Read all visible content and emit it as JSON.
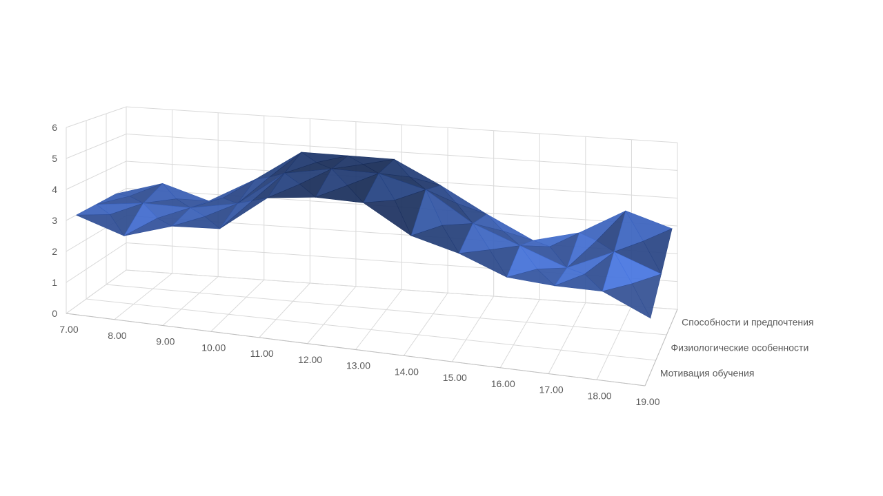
{
  "chart_data": {
    "type": "surface",
    "title": "",
    "x_categories": [
      "7.00",
      "8.00",
      "9.00",
      "10.00",
      "11.00",
      "12.00",
      "13.00",
      "14.00",
      "15.00",
      "16.00",
      "17.00",
      "18.00",
      "19.00"
    ],
    "z_ticks": [
      "0",
      "1",
      "2",
      "3",
      "4",
      "5",
      "6"
    ],
    "zlim": [
      0,
      6
    ],
    "series": [
      {
        "name": "Мотивация обучения",
        "values": [
          3,
          2.5,
          3,
          3.1,
          4.3,
          4.5,
          4.5,
          3.6,
          3.2,
          2.6,
          2.5,
          2.5,
          1.8
        ]
      },
      {
        "name": "Физиологические особенности",
        "values": [
          3,
          3.2,
          3.2,
          3.5,
          4.7,
          5,
          5,
          4.6,
          3.6,
          3,
          2.4,
          3.1,
          2.5
        ]
      },
      {
        "name": "Способности и предпочтения",
        "values": [
          3,
          3.5,
          3,
          3.9,
          5,
          5,
          5,
          4.2,
          3.3,
          2.5,
          2.9,
          3.8,
          3.3
        ]
      }
    ],
    "grid": true,
    "colors": {
      "surface_light": "#a4bdf8",
      "surface_mid": "#4a7ae8",
      "surface_dark": "#1f3a73",
      "grid": "#d9d9d9",
      "axis_text": "#595959"
    }
  }
}
